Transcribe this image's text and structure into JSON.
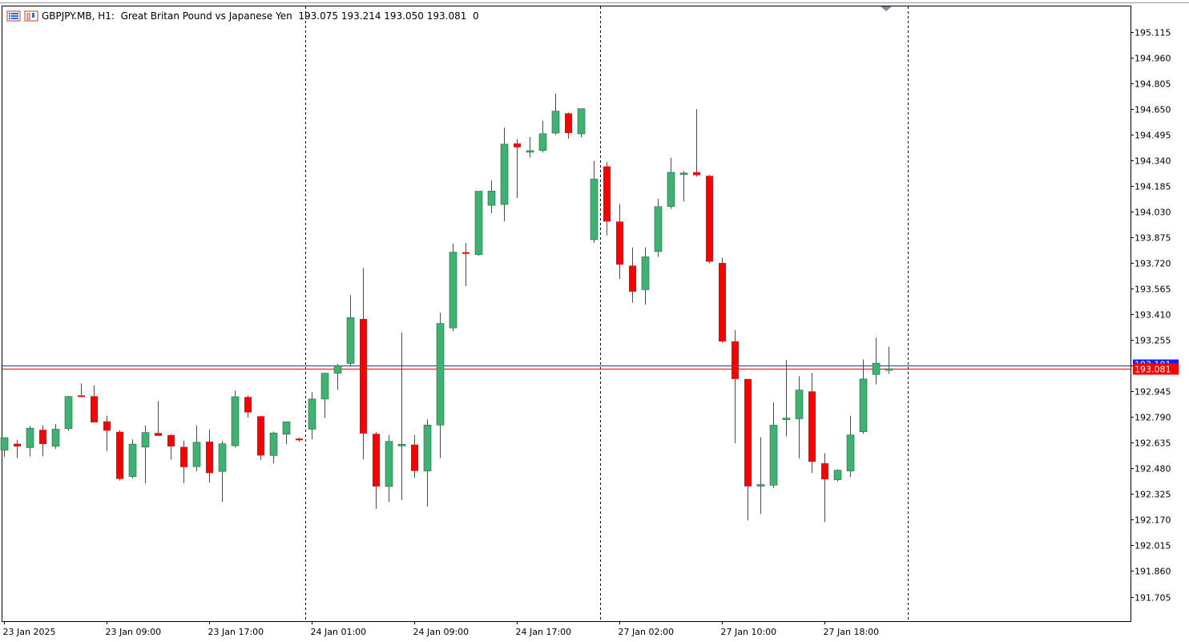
{
  "header": {
    "symbol": "GBPJPY.MB",
    "timeframe": "H1",
    "description": "Great Britan Pound vs Japanese Yen",
    "ohlc_text": "193.075 193.214 193.050 193.081",
    "extra": "0"
  },
  "icons": [
    "table-icon",
    "chart-window-icon"
  ],
  "colors": {
    "bull": "#3cb371",
    "bear": "#ff0000",
    "price_line": "#ff0000",
    "ask_line": "#1f3a93",
    "ask_tag": "#1a1aff",
    "bid_tag": "#ff0000",
    "grid_separator": "#000000"
  },
  "chart_data": {
    "type": "candlestick",
    "symbol": "GBPJPY.MB",
    "timeframe": "H1",
    "y_ticks": [
      "195.115",
      "194.960",
      "194.805",
      "194.650",
      "194.495",
      "194.340",
      "194.185",
      "194.030",
      "193.875",
      "193.720",
      "193.565",
      "193.410",
      "193.255",
      "193.100",
      "192.945",
      "192.790",
      "192.635",
      "192.480",
      "192.325",
      "192.170",
      "192.015",
      "191.860",
      "191.705"
    ],
    "ylim": [
      191.58,
      195.27
    ],
    "x_labels": [
      {
        "index": 0,
        "label": "23 Jan 2025"
      },
      {
        "index": 8,
        "label": "23 Jan 09:00"
      },
      {
        "index": 16,
        "label": "23 Jan 17:00"
      },
      {
        "index": 24,
        "label": "24 Jan 01:00"
      },
      {
        "index": 32,
        "label": "24 Jan 09:00"
      },
      {
        "index": 40,
        "label": "24 Jan 17:00"
      },
      {
        "index": 48,
        "label": "27 Jan 02:00"
      },
      {
        "index": 56,
        "label": "27 Jan 10:00"
      },
      {
        "index": 64,
        "label": "27 Jan 18:00"
      }
    ],
    "period_separators": [
      23,
      46,
      70
    ],
    "current_price": 193.081,
    "ask_price_label": "193.101",
    "bid_price_label": "193.081",
    "candles": [
      {
        "o": 192.59,
        "h": 192.652,
        "l": 192.548,
        "c": 192.665
      },
      {
        "o": 192.628,
        "h": 192.652,
        "l": 192.542,
        "c": 192.612
      },
      {
        "o": 192.605,
        "h": 192.735,
        "l": 192.551,
        "c": 192.722
      },
      {
        "o": 192.712,
        "h": 192.74,
        "l": 192.552,
        "c": 192.626
      },
      {
        "o": 192.613,
        "h": 192.747,
        "l": 192.597,
        "c": 192.716
      },
      {
        "o": 192.719,
        "h": 192.918,
        "l": 192.706,
        "c": 192.913
      },
      {
        "o": 192.92,
        "h": 192.992,
        "l": 192.92,
        "c": 192.911
      },
      {
        "o": 192.915,
        "h": 192.981,
        "l": 192.763,
        "c": 192.757
      },
      {
        "o": 192.763,
        "h": 192.797,
        "l": 192.584,
        "c": 192.707
      },
      {
        "o": 192.7,
        "h": 192.71,
        "l": 192.406,
        "c": 192.416
      },
      {
        "o": 192.43,
        "h": 192.655,
        "l": 192.419,
        "c": 192.626
      },
      {
        "o": 192.608,
        "h": 192.738,
        "l": 192.389,
        "c": 192.696
      },
      {
        "o": 192.693,
        "h": 192.886,
        "l": 192.681,
        "c": 192.676
      },
      {
        "o": 192.681,
        "h": 192.684,
        "l": 192.532,
        "c": 192.612
      },
      {
        "o": 192.609,
        "h": 192.646,
        "l": 192.39,
        "c": 192.487
      },
      {
        "o": 192.49,
        "h": 192.738,
        "l": 192.462,
        "c": 192.637
      },
      {
        "o": 192.641,
        "h": 192.714,
        "l": 192.394,
        "c": 192.451
      },
      {
        "o": 192.461,
        "h": 192.644,
        "l": 192.278,
        "c": 192.628
      },
      {
        "o": 192.616,
        "h": 192.949,
        "l": 192.605,
        "c": 192.912
      },
      {
        "o": 192.91,
        "h": 192.919,
        "l": 192.786,
        "c": 192.817
      },
      {
        "o": 192.794,
        "h": 192.794,
        "l": 192.53,
        "c": 192.557
      },
      {
        "o": 192.557,
        "h": 192.702,
        "l": 192.51,
        "c": 192.693
      },
      {
        "o": 192.686,
        "h": 192.761,
        "l": 192.626,
        "c": 192.76
      },
      {
        "o": 192.659,
        "h": 192.665,
        "l": 192.641,
        "c": 192.65
      },
      {
        "o": 192.716,
        "h": 192.94,
        "l": 192.654,
        "c": 192.898
      },
      {
        "o": 192.898,
        "h": 193.054,
        "l": 192.783,
        "c": 193.054
      },
      {
        "o": 193.054,
        "h": 193.11,
        "l": 192.953,
        "c": 193.1
      },
      {
        "o": 193.113,
        "h": 193.525,
        "l": 193.094,
        "c": 193.389
      },
      {
        "o": 193.381,
        "h": 193.688,
        "l": 192.534,
        "c": 192.69
      },
      {
        "o": 192.688,
        "h": 192.699,
        "l": 192.235,
        "c": 192.37
      },
      {
        "o": 192.37,
        "h": 192.681,
        "l": 192.277,
        "c": 192.642
      },
      {
        "o": 192.625,
        "h": 193.298,
        "l": 192.288,
        "c": 192.625
      },
      {
        "o": 192.623,
        "h": 192.681,
        "l": 192.422,
        "c": 192.464
      },
      {
        "o": 192.464,
        "h": 192.775,
        "l": 192.249,
        "c": 192.741
      },
      {
        "o": 192.741,
        "h": 193.419,
        "l": 192.541,
        "c": 193.354
      },
      {
        "o": 193.327,
        "h": 193.836,
        "l": 193.307,
        "c": 193.784
      },
      {
        "o": 193.784,
        "h": 193.839,
        "l": 193.579,
        "c": 193.778
      },
      {
        "o": 193.77,
        "h": 194.148,
        "l": 193.763,
        "c": 194.152
      },
      {
        "o": 194.067,
        "h": 194.217,
        "l": 194.019,
        "c": 194.153
      },
      {
        "o": 194.072,
        "h": 194.536,
        "l": 193.97,
        "c": 194.436
      },
      {
        "o": 194.44,
        "h": 194.467,
        "l": 194.112,
        "c": 194.417
      },
      {
        "o": 194.39,
        "h": 194.479,
        "l": 194.355,
        "c": 194.397
      },
      {
        "o": 194.398,
        "h": 194.578,
        "l": 194.386,
        "c": 194.499
      },
      {
        "o": 194.503,
        "h": 194.741,
        "l": 194.492,
        "c": 194.635
      },
      {
        "o": 194.622,
        "h": 194.627,
        "l": 194.47,
        "c": 194.503
      },
      {
        "o": 194.498,
        "h": 194.621,
        "l": 194.478,
        "c": 194.65
      },
      {
        "o": 193.86,
        "h": 194.335,
        "l": 193.84,
        "c": 194.225
      },
      {
        "o": 194.302,
        "h": 194.327,
        "l": 193.885,
        "c": 193.969
      },
      {
        "o": 193.969,
        "h": 194.075,
        "l": 193.623,
        "c": 193.709
      },
      {
        "o": 193.703,
        "h": 193.812,
        "l": 193.48,
        "c": 193.546
      },
      {
        "o": 193.558,
        "h": 193.813,
        "l": 193.467,
        "c": 193.756
      },
      {
        "o": 193.788,
        "h": 194.107,
        "l": 193.756,
        "c": 194.059
      },
      {
        "o": 194.06,
        "h": 194.354,
        "l": 194.045,
        "c": 194.266
      },
      {
        "o": 194.258,
        "h": 194.274,
        "l": 194.09,
        "c": 194.262
      },
      {
        "o": 194.267,
        "h": 194.647,
        "l": 194.241,
        "c": 194.249
      },
      {
        "o": 194.245,
        "h": 194.25,
        "l": 193.718,
        "c": 193.727
      },
      {
        "o": 193.719,
        "h": 193.751,
        "l": 193.238,
        "c": 193.245
      },
      {
        "o": 193.246,
        "h": 193.314,
        "l": 192.632,
        "c": 193.019
      },
      {
        "o": 193.019,
        "h": 193.019,
        "l": 192.166,
        "c": 192.371
      },
      {
        "o": 192.374,
        "h": 192.668,
        "l": 192.205,
        "c": 192.382
      },
      {
        "o": 192.378,
        "h": 192.876,
        "l": 192.361,
        "c": 192.74
      },
      {
        "o": 192.777,
        "h": 193.133,
        "l": 192.673,
        "c": 192.783
      },
      {
        "o": 192.779,
        "h": 193.036,
        "l": 192.54,
        "c": 192.952
      },
      {
        "o": 192.944,
        "h": 193.055,
        "l": 192.452,
        "c": 192.519
      },
      {
        "o": 192.51,
        "h": 192.571,
        "l": 192.156,
        "c": 192.413
      },
      {
        "o": 192.411,
        "h": 192.474,
        "l": 192.4,
        "c": 192.468
      },
      {
        "o": 192.464,
        "h": 192.797,
        "l": 192.428,
        "c": 192.681
      },
      {
        "o": 192.7,
        "h": 193.137,
        "l": 192.688,
        "c": 193.019
      },
      {
        "o": 193.046,
        "h": 193.269,
        "l": 192.986,
        "c": 193.114
      },
      {
        "o": 193.075,
        "h": 193.214,
        "l": 193.05,
        "c": 193.081
      }
    ]
  }
}
